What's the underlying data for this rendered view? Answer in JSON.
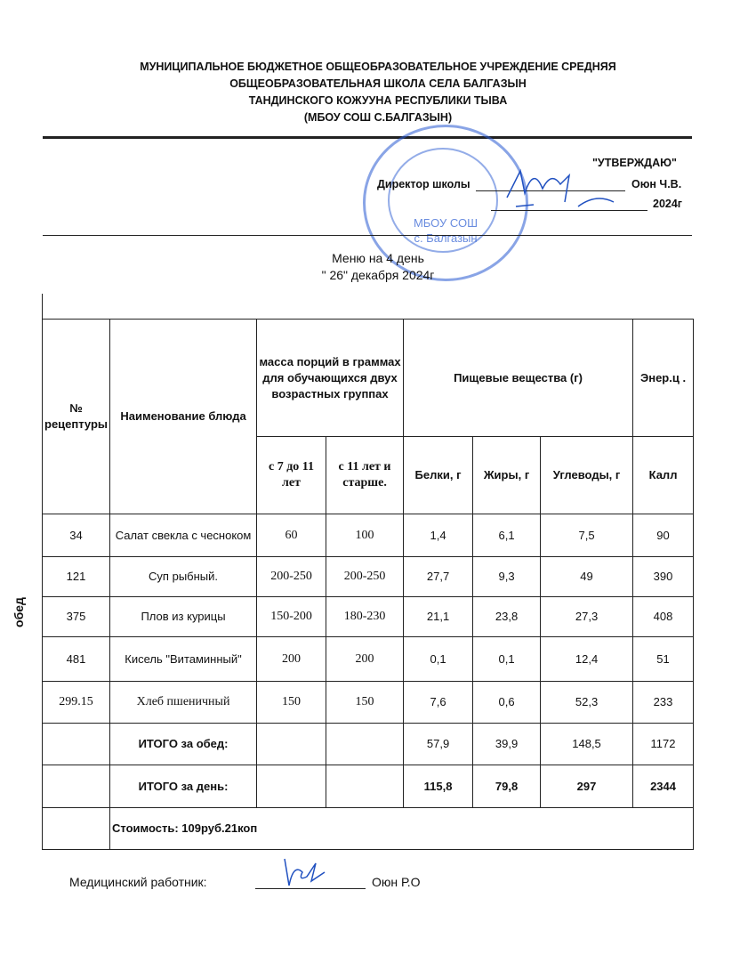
{
  "header": {
    "lines": [
      "МУНИЦИПАЛЬНОЕ БЮДЖЕТНОЕ ОБЩЕОБРАЗОВАТЕЛЬНОЕ УЧРЕЖДЕНИЕ СРЕДНЯЯ",
      "ОБЩЕОБРАЗОВАТЕЛЬНАЯ ШКОЛА СЕЛА БАЛГАЗЫН",
      "ТАНДИНСКОГО КОЖУУНА РЕСПУБЛИКИ ТЫВА",
      "(МБОУ СОШ С.БАЛГАЗЫН)"
    ]
  },
  "approval": {
    "approve": "\"УТВЕРЖДАЮ\"",
    "director_label": "Директор школы",
    "director_name": "Оюн Ч.В.",
    "date_quote": "\"",
    "year": "2024г"
  },
  "stamp": {
    "line1": "МБОУ СОШ",
    "line2": "с. Балгазын"
  },
  "title": {
    "line1": "Меню на 4 день",
    "line2": "\" 26\"  декабря  2024г"
  },
  "section_label": "обед",
  "table": {
    "headers": {
      "recipe": "№ рецептуры",
      "dish": "Наименование блюда",
      "mass": "масса порций в граммах для обучающихся двух возрастных группах",
      "nutrients": "Пищевые вещества (г)",
      "energy": "Энер.ц .",
      "age1": "с 7 до 11 лет",
      "age2": "с 11 лет и старше.",
      "protein": "Белки, г",
      "fat": "Жиры, г",
      "carbs": "Углеводы, г",
      "kcal": "Калл"
    },
    "rows": [
      {
        "recipe": "34",
        "dish": "Салат свекла с чесноком",
        "m1": "60",
        "m2": "100",
        "p": "1,4",
        "f": "6,1",
        "c": "7,5",
        "e": "90"
      },
      {
        "recipe": "121",
        "dish": "Суп рыбный.",
        "m1": "200-250",
        "m2": "200-250",
        "p": "27,7",
        "f": "9,3",
        "c": "49",
        "e": "390"
      },
      {
        "recipe": "375",
        "dish": "Плов из курицы",
        "m1": "150-200",
        "m2": "180-230",
        "p": "21,1",
        "f": "23,8",
        "c": "27,3",
        "e": "408"
      },
      {
        "recipe": "481",
        "dish": "Кисель \"Витаминный\"",
        "m1": "200",
        "m2": "200",
        "p": "0,1",
        "f": "0,1",
        "c": "12,4",
        "e": "51"
      },
      {
        "recipe": "299.15",
        "dish": "Хлеб пшеничный",
        "m1": "150",
        "m2": "150",
        "p": "7,6",
        "f": "0,6",
        "c": "52,3",
        "e": "233"
      }
    ],
    "total_lunch": {
      "label": "ИТОГО за обед:",
      "p": "57,9",
      "f": "39,9",
      "c": "148,5",
      "e": "1172"
    },
    "total_day": {
      "label": "ИТОГО за день:",
      "p": "115,8",
      "f": "79,8",
      "c": "297",
      "e": "2344"
    },
    "cost": "Стоимость:  109руб.21коп"
  },
  "footer": {
    "label": "Медицинский работник:",
    "name": "Оюн Р.О"
  }
}
